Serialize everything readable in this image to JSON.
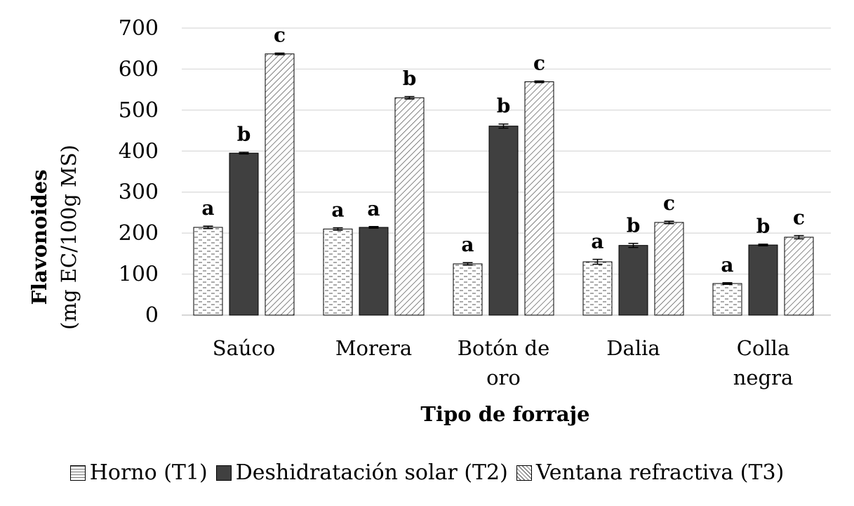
{
  "chart_data": {
    "type": "bar",
    "categories": [
      "Saúco",
      "Morera",
      "Botón de oro",
      "Dalia",
      "Colla negra"
    ],
    "series": [
      {
        "name": "Horno (T1)",
        "values": [
          214,
          210,
          125,
          130,
          77
        ],
        "errors": [
          3,
          3,
          3,
          6,
          2
        ],
        "letters": [
          "a",
          "a",
          "a",
          "a",
          "a"
        ],
        "pattern": "dash",
        "color": "#ffffff"
      },
      {
        "name": "Deshidratación solar (T2)",
        "values": [
          395,
          214,
          461,
          170,
          171
        ],
        "errors": [
          2,
          2,
          5,
          5,
          2
        ],
        "letters": [
          "b",
          "a",
          "b",
          "b",
          "b"
        ],
        "pattern": "solid",
        "color": "#404040"
      },
      {
        "name": "Ventana refractiva (T3)",
        "values": [
          637,
          530,
          569,
          226,
          190
        ],
        "errors": [
          2,
          3,
          2,
          3,
          4
        ],
        "letters": [
          "c",
          "b",
          "c",
          "c",
          "c"
        ],
        "pattern": "diagonal",
        "color": "#ffffff"
      }
    ],
    "xlabel": "Tipo de forraje",
    "ylabel_line1": "Flavonoides",
    "ylabel_line2": "(mg EC/100g MS)",
    "ylim": [
      0,
      700
    ],
    "yticks": [
      0,
      100,
      200,
      300,
      400,
      500,
      600,
      700
    ],
    "grid": true,
    "legend_position": "bottom"
  }
}
